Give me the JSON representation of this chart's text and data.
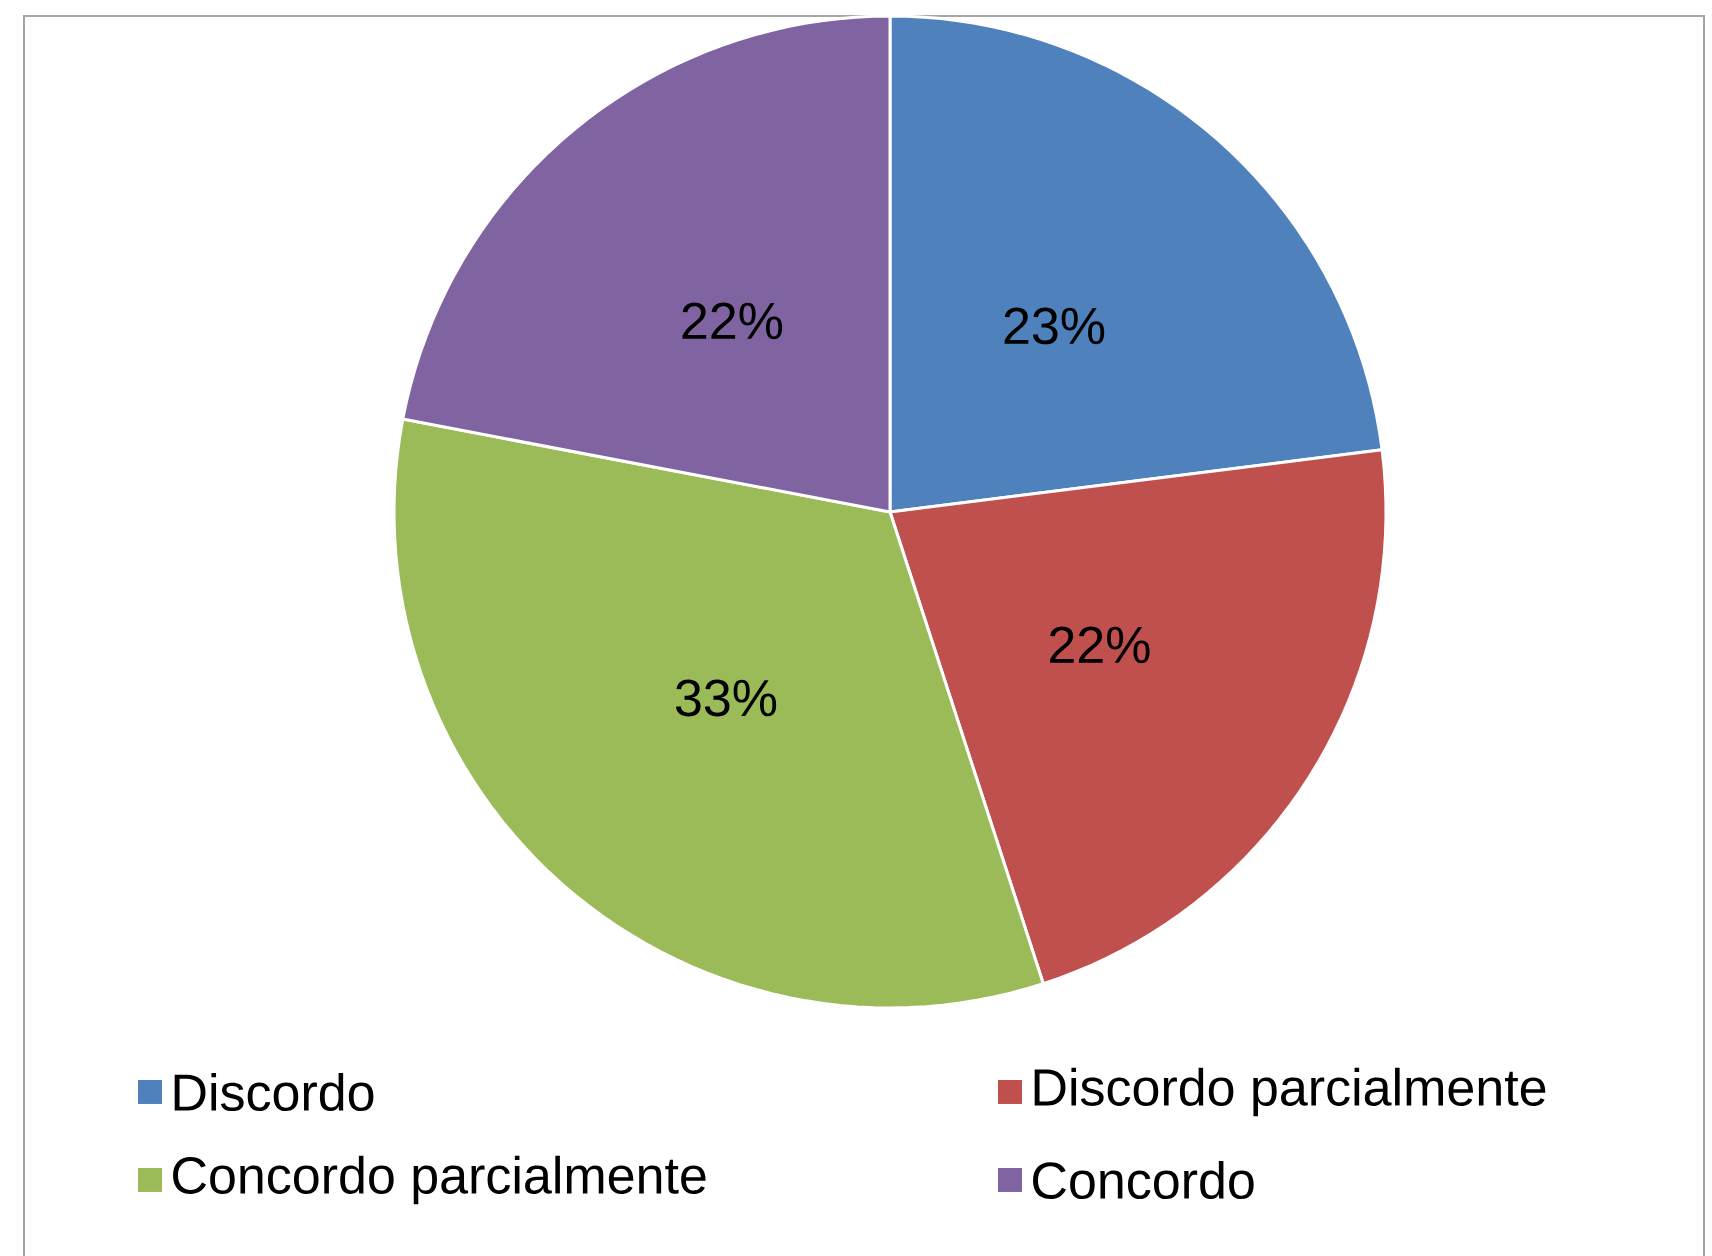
{
  "chart_data": {
    "type": "pie",
    "categories": [
      "Discordo",
      "Discordo parcialmente",
      "Concordo parcialmente",
      "Concordo"
    ],
    "values": [
      23,
      22,
      33,
      22
    ],
    "colors": [
      "#4f81bd",
      "#c0504d",
      "#9bbb59",
      "#8064a2"
    ],
    "value_labels": [
      "23%",
      "22%",
      "33%",
      "22%"
    ],
    "legend": "bottom"
  }
}
